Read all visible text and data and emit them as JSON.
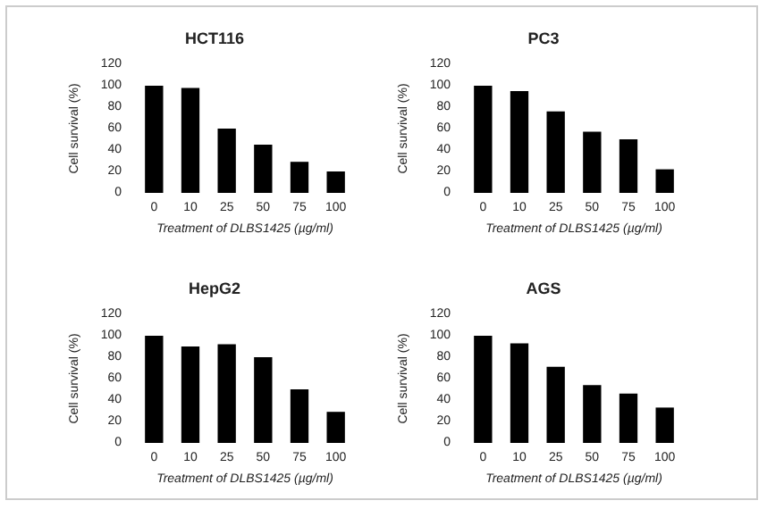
{
  "chart_data": [
    {
      "type": "bar",
      "title": "HCT116",
      "xlabel": "Treatment of DLBS1425 (µg/ml)",
      "ylabel": "Cell survival (%)",
      "categories": [
        "0",
        "10",
        "25",
        "50",
        "75",
        "100"
      ],
      "values": [
        100,
        98,
        60,
        45,
        29,
        20
      ],
      "color": "#000000",
      "ylim": [
        0,
        120
      ],
      "yticks": [
        0,
        20,
        40,
        60,
        80,
        100,
        120
      ],
      "grid": false
    },
    {
      "type": "bar",
      "title": "PC3",
      "xlabel": "Treatment of DLBS1425 (µg/ml)",
      "ylabel": "Cell survival (%)",
      "categories": [
        "0",
        "10",
        "25",
        "50",
        "75",
        "100"
      ],
      "values": [
        100,
        95,
        76,
        57,
        50,
        22
      ],
      "color": "#000000",
      "ylim": [
        0,
        120
      ],
      "yticks": [
        0,
        20,
        40,
        60,
        80,
        100,
        120
      ],
      "grid": false
    },
    {
      "type": "bar",
      "title": "HepG2",
      "xlabel": "Treatment of DLBS1425 (µg/ml)",
      "ylabel": "Cell survival (%)",
      "categories": [
        "0",
        "10",
        "25",
        "50",
        "75",
        "100"
      ],
      "values": [
        100,
        90,
        92,
        80,
        50,
        29
      ],
      "color": "#000000",
      "ylim": [
        0,
        120
      ],
      "yticks": [
        0,
        20,
        40,
        60,
        80,
        100,
        120
      ],
      "grid": false
    },
    {
      "type": "bar",
      "title": "AGS",
      "xlabel": "Treatment of DLBS1425 (µg/ml)",
      "ylabel": "Cell survival (%)",
      "categories": [
        "0",
        "10",
        "25",
        "50",
        "75",
        "100"
      ],
      "values": [
        100,
        93,
        71,
        54,
        46,
        33
      ],
      "color": "#000000",
      "ylim": [
        0,
        120
      ],
      "yticks": [
        0,
        20,
        40,
        60,
        80,
        100,
        120
      ],
      "grid": false
    }
  ]
}
